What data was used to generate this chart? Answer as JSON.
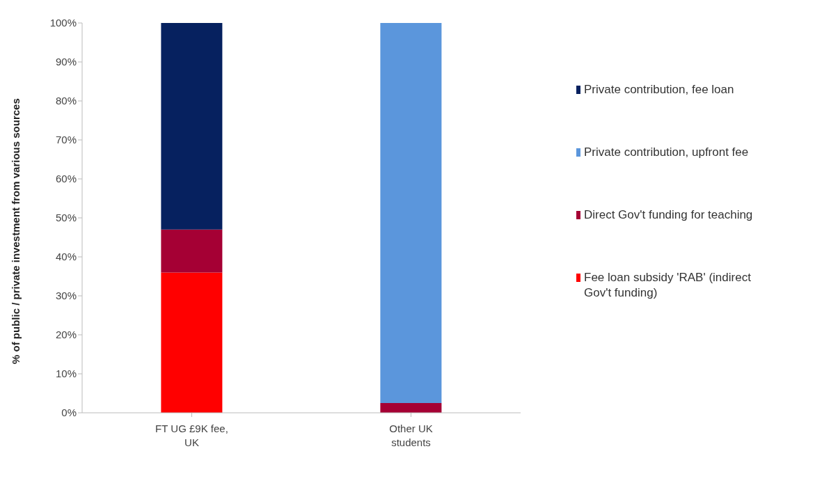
{
  "chart_data": {
    "type": "bar",
    "stacked": true,
    "ylabel": "% of public / private investment from various sources",
    "categories": [
      "FT UG £9K fee, UK",
      "Other UK students"
    ],
    "series": [
      {
        "name": "Fee loan subsidy 'RAB' (indirect Gov't funding)",
        "color": "#ff0000",
        "values": [
          36,
          null
        ]
      },
      {
        "name": "Direct Gov't funding for teaching",
        "color": "#a50034",
        "values": [
          11,
          2.5
        ]
      },
      {
        "name": "Private contribution, upfront fee",
        "color": "#5b96dc",
        "values": [
          null,
          97.5
        ]
      },
      {
        "name": "Private contribution, fee loan",
        "color": "#06215f",
        "values": [
          53,
          null
        ]
      }
    ],
    "ylim": [
      0,
      100
    ],
    "yticks": [
      {
        "value": 0,
        "label": "0%"
      },
      {
        "value": 10,
        "label": "10%"
      },
      {
        "value": 20,
        "label": "20%"
      },
      {
        "value": 30,
        "label": "30%"
      },
      {
        "value": 40,
        "label": "40%"
      },
      {
        "value": 50,
        "label": "50%"
      },
      {
        "value": 60,
        "label": "60%"
      },
      {
        "value": 70,
        "label": "70%"
      },
      {
        "value": 80,
        "label": "80%"
      },
      {
        "value": 90,
        "label": "90%"
      },
      {
        "value": 100,
        "label": "100%"
      }
    ],
    "grid": false,
    "legend": "right"
  }
}
